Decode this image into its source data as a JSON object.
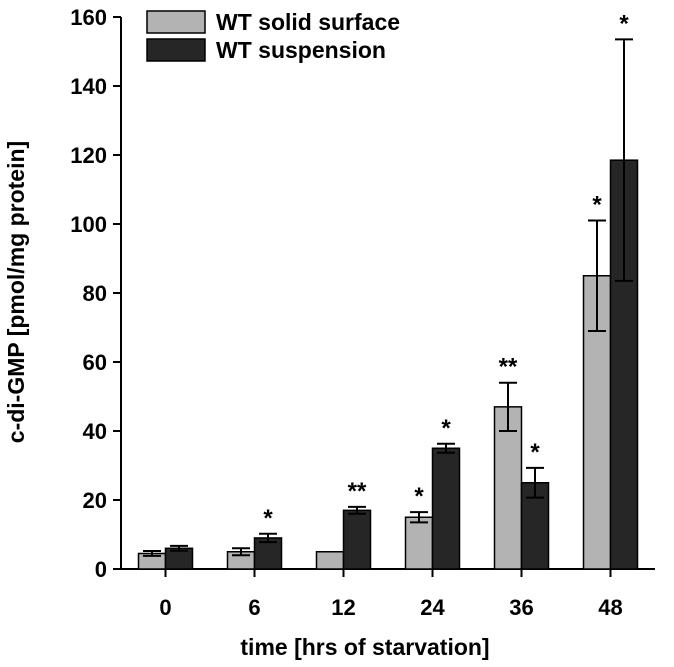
{
  "chart_data": {
    "type": "bar",
    "title": "",
    "xlabel": "time [hrs of starvation]",
    "ylabel": "c-di-GMP [pmol/mg protein]",
    "ylim": [
      0,
      160
    ],
    "yticks": [
      "0",
      "20",
      "40",
      "60",
      "80",
      "100",
      "120",
      "140",
      "160"
    ],
    "categories": [
      "0",
      "6",
      "12",
      "24",
      "36",
      "48"
    ],
    "legend_position": "top-left",
    "grid": false,
    "series": [
      {
        "name": "WT solid surface",
        "color": "#b3b3b3",
        "values": [
          4.5,
          5,
          5,
          15,
          47,
          85
        ],
        "errors": [
          0.7,
          1,
          0,
          1.5,
          7,
          16
        ],
        "significance": [
          "",
          "",
          "",
          "*",
          "**",
          "*"
        ]
      },
      {
        "name": "WT suspension",
        "color": "#262626",
        "values": [
          6,
          9,
          17,
          35,
          25,
          118.5
        ],
        "errors": [
          0.7,
          1.2,
          1,
          1.3,
          4.3,
          35
        ],
        "significance": [
          "",
          "*",
          "**",
          "*",
          "*",
          "*"
        ]
      }
    ]
  }
}
